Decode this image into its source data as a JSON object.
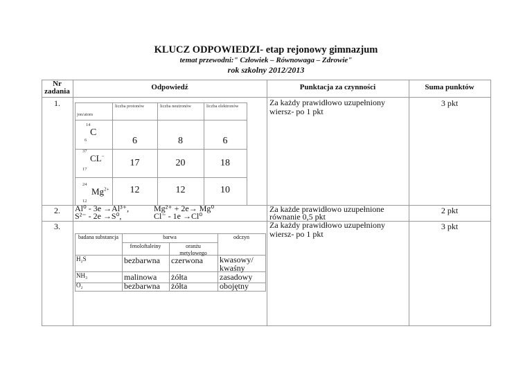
{
  "title": "KLUCZ ODPOWIEDZI- etap rejonowy gimnazjum",
  "subtitle": "temat przewodni:\" Człowiek – Równowaga – Zdrowie\"",
  "year": "rok szkolny 2012/2013",
  "headers": {
    "nr": "Nr zadania",
    "answer": "Odpowiedź",
    "scoring": "Punktacja za czynności",
    "sum": "Suma punktów"
  },
  "task1": {
    "nr": "1.",
    "cols": [
      "jon/atom",
      "liczba protonów",
      "liczba neutronów",
      "liczba elektronów"
    ],
    "rows": [
      {
        "mass": "14",
        "atomic": "6",
        "symbol": "C",
        "charge": "",
        "values": [
          "6",
          "8",
          "6"
        ]
      },
      {
        "mass": "37",
        "atomic": "17",
        "symbol": "CL",
        "charge": "−",
        "values": [
          "17",
          "20",
          "18"
        ]
      },
      {
        "mass": "24",
        "atomic": "12",
        "symbol": "Mg",
        "charge": "2+",
        "values": [
          "12",
          "12",
          "10"
        ]
      }
    ],
    "scoring": "Za każdy prawidłowo uzupełniony wiersz- po 1 pkt",
    "sum": "3 pkt"
  },
  "task2": {
    "nr": "2.",
    "eq": [
      "Al⁰ - 3e →Al³⁺,",
      "Mg²⁺ + 2e→ Mg⁰",
      "S²⁻ - 2e →S⁰,",
      "Cl⁻ - 1e →Cl⁰"
    ],
    "scoring": "Za każde prawidłowo uzupełnione równanie 0,5 pkt",
    "sum": "2 pkt"
  },
  "task3": {
    "nr": "3.",
    "head": {
      "substance": "badana substancja",
      "color": "barwa",
      "phenol": "fenoloftaleiny",
      "orange": "oranżu metylowego",
      "reaction": "odczyn"
    },
    "rows": [
      [
        "H₂S",
        "bezbarwna",
        "czerwona",
        "kwasowy/ kwaśny"
      ],
      [
        "NH₃",
        "malinowa",
        "żółta",
        "zasadowy"
      ],
      [
        "O₂",
        "bezbarwna",
        "żółta",
        "obojętny"
      ]
    ],
    "scoring": "Za każdy prawidłowo uzupełniony wiersz- po 1 pkt",
    "sum": "3 pkt"
  }
}
